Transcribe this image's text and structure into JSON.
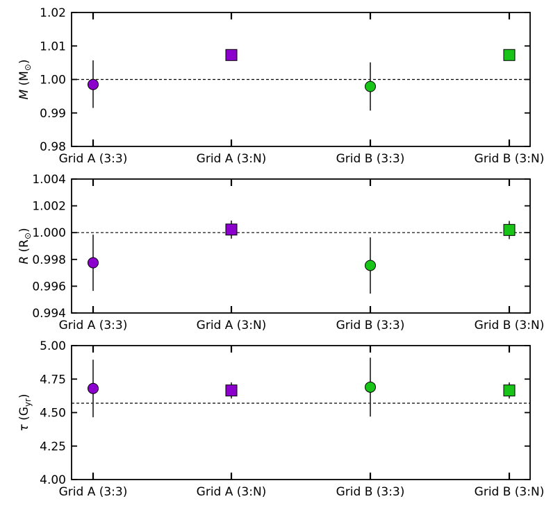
{
  "chart_data": [
    {
      "type": "scatter",
      "ylabel": {
        "symbol": "M",
        "unit": " (M",
        "sub": "⊙",
        "close": ")"
      },
      "categories": [
        "Grid A (3:3)",
        "Grid A (3:N)",
        "Grid B (3:3)",
        "Grid B (3:N)"
      ],
      "ylim": [
        0.98,
        1.02
      ],
      "yticks": [
        0.98,
        0.99,
        1.0,
        1.01,
        1.02
      ],
      "ytick_labels": [
        "0.98",
        "0.99",
        "1.00",
        "1.01",
        "1.02"
      ],
      "reference_line": 1.0,
      "points": [
        {
          "category": "Grid A (3:3)",
          "y": 0.9985,
          "err_low": 0.9915,
          "err_high": 1.0057,
          "marker": "circle",
          "color": "#8b00cc"
        },
        {
          "category": "Grid A (3:N)",
          "y": 1.0073,
          "err_low": 1.0058,
          "err_high": 1.0089,
          "marker": "square",
          "color": "#8b00cc"
        },
        {
          "category": "Grid B (3:3)",
          "y": 0.9979,
          "err_low": 0.9907,
          "err_high": 1.0051,
          "marker": "circle",
          "color": "#17c417"
        },
        {
          "category": "Grid B (3:N)",
          "y": 1.0073,
          "err_low": 1.0058,
          "err_high": 1.0089,
          "marker": "square",
          "color": "#17c417"
        }
      ]
    },
    {
      "type": "scatter",
      "ylabel": {
        "symbol": "R",
        "unit": " (R",
        "sub": "⊙",
        "close": ")"
      },
      "categories": [
        "Grid A (3:3)",
        "Grid A (3:N)",
        "Grid B (3:3)",
        "Grid B (3:N)"
      ],
      "ylim": [
        0.994,
        1.004
      ],
      "yticks": [
        0.994,
        0.996,
        0.998,
        1.0,
        1.002,
        1.004
      ],
      "ytick_labels": [
        "0.994",
        "0.996",
        "0.998",
        "1.000",
        "1.002",
        "1.004"
      ],
      "reference_line": 1.0,
      "points": [
        {
          "category": "Grid A (3:3)",
          "y": 0.99775,
          "err_low": 0.99565,
          "err_high": 0.99985,
          "marker": "circle",
          "color": "#8b00cc"
        },
        {
          "category": "Grid A (3:N)",
          "y": 1.00023,
          "err_low": 0.99955,
          "err_high": 1.0009,
          "marker": "square",
          "color": "#8b00cc"
        },
        {
          "category": "Grid B (3:3)",
          "y": 0.99755,
          "err_low": 0.99545,
          "err_high": 0.99965,
          "marker": "circle",
          "color": "#17c417"
        },
        {
          "category": "Grid B (3:N)",
          "y": 1.0002,
          "err_low": 0.99952,
          "err_high": 1.00087,
          "marker": "square",
          "color": "#17c417"
        }
      ]
    },
    {
      "type": "scatter",
      "ylabel": {
        "symbol": "τ",
        "unit": " (G",
        "sub": "yr",
        "close": ")"
      },
      "categories": [
        "Grid A (3:3)",
        "Grid A (3:N)",
        "Grid B (3:3)",
        "Grid B (3:N)"
      ],
      "ylim": [
        4.0,
        5.0
      ],
      "yticks": [
        4.0,
        4.25,
        4.5,
        4.75,
        5.0
      ],
      "ytick_labels": [
        "4.00",
        "4.25",
        "4.50",
        "4.75",
        "5.00"
      ],
      "reference_line": 4.57,
      "points": [
        {
          "category": "Grid A (3:3)",
          "y": 4.68,
          "err_low": 4.465,
          "err_high": 4.895,
          "marker": "circle",
          "color": "#8b00cc"
        },
        {
          "category": "Grid A (3:N)",
          "y": 4.665,
          "err_low": 4.605,
          "err_high": 4.725,
          "marker": "square",
          "color": "#8b00cc"
        },
        {
          "category": "Grid B (3:3)",
          "y": 4.69,
          "err_low": 4.47,
          "err_high": 4.91,
          "marker": "circle",
          "color": "#17c417"
        },
        {
          "category": "Grid B (3:N)",
          "y": 4.665,
          "err_low": 4.605,
          "err_high": 4.725,
          "marker": "square",
          "color": "#17c417"
        }
      ]
    }
  ]
}
